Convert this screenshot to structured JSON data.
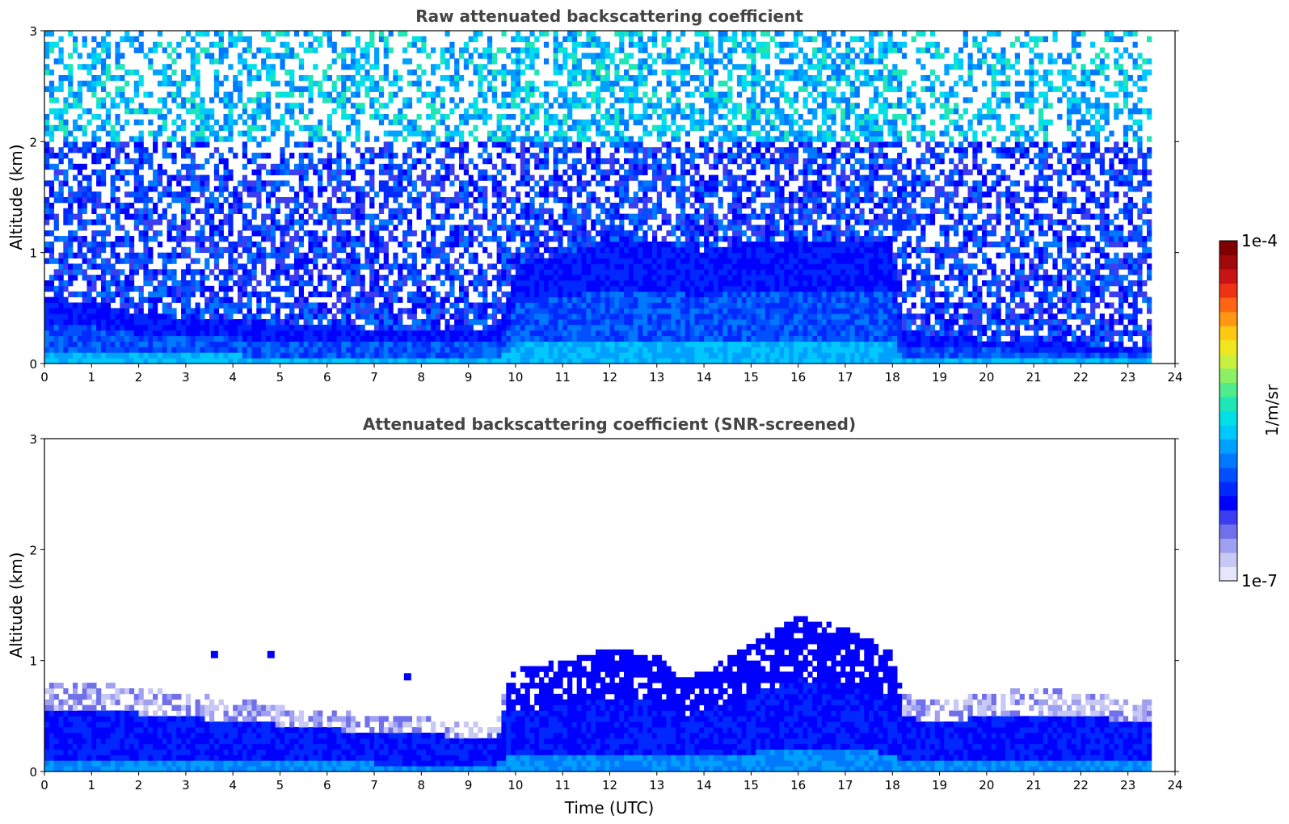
{
  "chart_data": [
    {
      "type": "heatmap",
      "title": "Raw attenuated backscattering coefficient",
      "xlabel": "",
      "ylabel": "Altitude (km)",
      "xlim": [
        0,
        24
      ],
      "ylim": [
        0,
        3
      ],
      "x_ticks": [
        0,
        1,
        2,
        3,
        4,
        5,
        6,
        7,
        8,
        9,
        10,
        11,
        12,
        13,
        14,
        15,
        16,
        17,
        18,
        19,
        20,
        21,
        22,
        23,
        24
      ],
      "y_ticks": [
        0,
        1,
        2,
        3
      ],
      "grid": false,
      "data_end_time": 23.5,
      "boundary_layer_top_km": [
        {
          "t": 0,
          "z": 0.6
        },
        {
          "t": 1,
          "z": 0.55
        },
        {
          "t": 2,
          "z": 0.45
        },
        {
          "t": 3,
          "z": 0.4
        },
        {
          "t": 4,
          "z": 0.38
        },
        {
          "t": 5,
          "z": 0.36
        },
        {
          "t": 6,
          "z": 0.34
        },
        {
          "t": 7,
          "z": 0.32
        },
        {
          "t": 8,
          "z": 0.3
        },
        {
          "t": 9,
          "z": 0.3
        },
        {
          "t": 9.7,
          "z": 0.35
        },
        {
          "t": 10,
          "z": 0.9
        },
        {
          "t": 11,
          "z": 1.0
        },
        {
          "t": 12,
          "z": 1.1
        },
        {
          "t": 13,
          "z": 1.1
        },
        {
          "t": 14,
          "z": 1.0
        },
        {
          "t": 15,
          "z": 1.1
        },
        {
          "t": 16,
          "z": 1.1
        },
        {
          "t": 17,
          "z": 1.1
        },
        {
          "t": 18,
          "z": 1.1
        },
        {
          "t": 18.2,
          "z": 0.3
        },
        {
          "t": 19,
          "z": 0.25
        },
        {
          "t": 20,
          "z": 0.22
        },
        {
          "t": 21,
          "z": 0.2
        },
        {
          "t": 22,
          "z": 0.18
        },
        {
          "t": 23,
          "z": 0.15
        },
        {
          "t": 23.5,
          "z": 0.15
        }
      ]
    },
    {
      "type": "heatmap",
      "title": "Attenuated backscattering coefficient (SNR-screened)",
      "xlabel": "Time (UTC)",
      "ylabel": "Altitude (km)",
      "xlim": [
        0,
        24
      ],
      "ylim": [
        0,
        3
      ],
      "x_ticks": [
        0,
        1,
        2,
        3,
        4,
        5,
        6,
        7,
        8,
        9,
        10,
        11,
        12,
        13,
        14,
        15,
        16,
        17,
        18,
        19,
        20,
        21,
        22,
        23,
        24
      ],
      "y_ticks": [
        0,
        1,
        2,
        3
      ],
      "grid": false,
      "data_end_time": 23.5,
      "signal_top_km": [
        {
          "t": 0,
          "z": 0.8
        },
        {
          "t": 1,
          "z": 0.8
        },
        {
          "t": 2,
          "z": 0.75
        },
        {
          "t": 3,
          "z": 0.7
        },
        {
          "t": 4,
          "z": 0.65
        },
        {
          "t": 5,
          "z": 0.6
        },
        {
          "t": 6,
          "z": 0.55
        },
        {
          "t": 7,
          "z": 0.5
        },
        {
          "t": 8,
          "z": 0.48
        },
        {
          "t": 9,
          "z": 0.45
        },
        {
          "t": 9.6,
          "z": 0.4
        },
        {
          "t": 9.8,
          "z": 0.9
        },
        {
          "t": 11,
          "z": 1.0
        },
        {
          "t": 12,
          "z": 1.1
        },
        {
          "t": 13,
          "z": 1.05
        },
        {
          "t": 13.5,
          "z": 0.85
        },
        {
          "t": 14,
          "z": 0.9
        },
        {
          "t": 15,
          "z": 1.15
        },
        {
          "t": 16,
          "z": 1.4
        },
        {
          "t": 17,
          "z": 1.3
        },
        {
          "t": 18,
          "z": 1.1
        },
        {
          "t": 18.2,
          "z": 0.7
        },
        {
          "t": 19,
          "z": 0.65
        },
        {
          "t": 20,
          "z": 0.7
        },
        {
          "t": 21,
          "z": 0.75
        },
        {
          "t": 22,
          "z": 0.72
        },
        {
          "t": 23,
          "z": 0.65
        },
        {
          "t": 23.5,
          "z": 0.65
        }
      ],
      "isolated_features": [
        {
          "t": 4.8,
          "z": 1.05
        },
        {
          "t": 3.6,
          "z": 1.05
        },
        {
          "t": 7.7,
          "z": 0.85
        }
      ]
    }
  ],
  "colorbar": {
    "label": "1/m/sr",
    "min_label": "1e-7",
    "max_label": "1e-4",
    "colors": [
      "#e6e6fa",
      "#c8c8f5",
      "#a0a0f0",
      "#7070eb",
      "#3c3cf0",
      "#0000ff",
      "#0028ff",
      "#0050ff",
      "#0078ff",
      "#00a0ff",
      "#00c8ff",
      "#00e0e6",
      "#1ee6b4",
      "#50eb8c",
      "#8cf064",
      "#c8f03c",
      "#f0e61e",
      "#ffc814",
      "#ff9614",
      "#ff6414",
      "#f03214",
      "#c81414",
      "#a00a0a",
      "#800000"
    ]
  }
}
